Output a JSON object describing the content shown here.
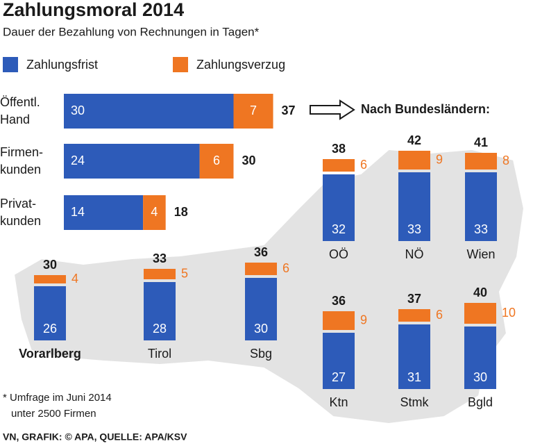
{
  "title": "Zahlungsmoral 2014",
  "subtitle": "Dauer der Bezahlung von Rechnungen in Tagen*",
  "chart_data": [
    {
      "type": "bar",
      "orientation": "horizontal",
      "stacked": true,
      "categories": [
        [
          "Öffentl.",
          "Hand"
        ],
        [
          "Firmen-",
          "kunden"
        ],
        [
          "Privat-",
          "kunden"
        ]
      ],
      "series": [
        {
          "name": "Zahlungsfrist",
          "color": "#2d5bb9",
          "values": [
            30,
            24,
            14
          ]
        },
        {
          "name": "Zahlungsverzug",
          "color": "#ef7622",
          "values": [
            7,
            6,
            4
          ]
        }
      ],
      "totals": [
        37,
        30,
        18
      ]
    },
    {
      "type": "bar",
      "orientation": "vertical",
      "stacked": true,
      "title": "Nach Bundesländern:",
      "categories": [
        "Vorarlberg",
        "Tirol",
        "Sbg",
        "OÖ",
        "NÖ",
        "Wien",
        "Ktn",
        "Stmk",
        "Bgld"
      ],
      "series": [
        {
          "color": "#2d5bb9",
          "values": [
            26,
            28,
            30,
            32,
            33,
            33,
            27,
            31,
            30
          ]
        },
        {
          "color": "#ef7622",
          "values": [
            4,
            5,
            6,
            6,
            9,
            8,
            9,
            6,
            10
          ]
        }
      ],
      "totals": [
        30,
        33,
        36,
        38,
        42,
        41,
        36,
        37,
        40
      ]
    }
  ],
  "footnote": [
    "* Umfrage im Juni 2014",
    "unter 2500 Firmen"
  ],
  "source": "VN, GRAFIK: © APA, QUELLE: APA/KSV"
}
